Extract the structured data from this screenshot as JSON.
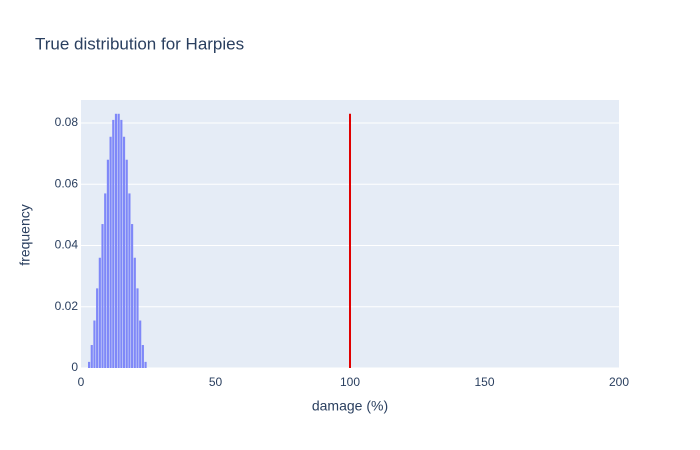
{
  "chart_data": {
    "type": "bar",
    "title": "True distribution for Harpies",
    "x_label": "damage (%)",
    "y_label": "frequency",
    "x": [
      3,
      4,
      5,
      6,
      7,
      8,
      9,
      10,
      11,
      12,
      13,
      14,
      15,
      16,
      17,
      18,
      19,
      20,
      21,
      22,
      23,
      24
    ],
    "values": [
      0.002,
      0.0075,
      0.0155,
      0.026,
      0.036,
      0.047,
      0.057,
      0.068,
      0.0755,
      0.081,
      0.083,
      0.083,
      0.081,
      0.0755,
      0.068,
      0.057,
      0.047,
      0.036,
      0.026,
      0.0155,
      0.0075,
      0.002
    ],
    "color": "#7f88f8",
    "xlim": [
      0,
      200
    ],
    "xticks": [
      0,
      50,
      100,
      150,
      200
    ],
    "ylim": [
      0,
      0.0875
    ],
    "yticks": [
      0,
      0.02,
      0.04,
      0.06,
      0.08
    ],
    "grid": true,
    "vline": {
      "x": 100,
      "y": [
        0,
        0.083
      ],
      "color": "#e00000"
    }
  }
}
